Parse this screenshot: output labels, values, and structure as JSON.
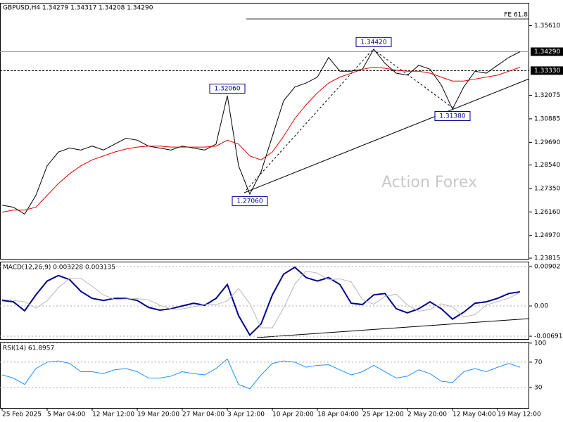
{
  "chart_data": [
    {
      "type": "line",
      "title": "GBPUSD,H4  1.34279 1.34317 1.34208 1.34290",
      "watermark": "Action Forex",
      "ylim": [
        1.2378,
        1.3677
      ],
      "yticks": [
        {
          "value": 1.3561,
          "label": "1.35610"
        },
        {
          "value": 1.32075,
          "label": "1.32075"
        },
        {
          "value": 1.30885,
          "label": "1.30885"
        },
        {
          "value": 1.2969,
          "label": "1.29690"
        },
        {
          "value": 1.2854,
          "label": "1.28540"
        },
        {
          "value": 1.2735,
          "label": "1.27350"
        },
        {
          "value": 1.2616,
          "label": "1.26160"
        },
        {
          "value": 1.2497,
          "label": "1.24970"
        },
        {
          "value": 1.23815,
          "label": "1.23815"
        }
      ],
      "price_lines": [
        {
          "value": 1.3429,
          "label": "1.34290",
          "style": "solid"
        },
        {
          "value": 1.3333,
          "label": "1.33330",
          "style": "dashed"
        }
      ],
      "level_label": "FE 61.8",
      "annotations": [
        {
          "value": 1.3206,
          "label": "1.32060"
        },
        {
          "value": 1.3442,
          "label": "1.34420"
        },
        {
          "value": 1.3138,
          "label": "1.31380"
        },
        {
          "value": 1.2706,
          "label": "1.27060"
        }
      ],
      "series": [
        {
          "name": "Price",
          "color": "#000000",
          "values": [
            1.265,
            1.264,
            1.2605,
            1.27,
            1.285,
            1.292,
            1.294,
            1.293,
            1.295,
            1.293,
            1.296,
            1.299,
            1.298,
            1.295,
            1.294,
            1.293,
            1.295,
            1.294,
            1.293,
            1.296,
            1.3206,
            1.285,
            1.2706,
            1.282,
            1.3,
            1.318,
            1.325,
            1.327,
            1.33,
            1.34,
            1.333,
            1.333,
            1.334,
            1.3442,
            1.337,
            1.332,
            1.331,
            1.336,
            1.334,
            1.326,
            1.3138,
            1.325,
            1.333,
            1.332,
            1.336,
            1.34,
            1.3429
          ]
        },
        {
          "name": "MA",
          "color": "#e00000",
          "values": [
            1.2615,
            1.2625,
            1.2625,
            1.264,
            1.27,
            1.276,
            1.281,
            1.285,
            1.288,
            1.29,
            1.292,
            1.2935,
            1.2945,
            1.295,
            1.295,
            1.2945,
            1.2945,
            1.2945,
            1.2945,
            1.295,
            1.298,
            1.296,
            1.29,
            1.288,
            1.292,
            1.3,
            1.309,
            1.316,
            1.322,
            1.327,
            1.33,
            1.332,
            1.334,
            1.335,
            1.3345,
            1.3335,
            1.333,
            1.333,
            1.332,
            1.33,
            1.328,
            1.328,
            1.329,
            1.33,
            1.331,
            1.333,
            1.335
          ]
        }
      ]
    },
    {
      "type": "line",
      "title": "MACD(12,26,9) 0.003228 0.003135",
      "ylim": [
        -0.00755,
        0.01013
      ],
      "yticks": [
        0.00902,
        {
          "value": 0,
          "label": "0.00"
        },
        -0.006915
      ],
      "series": [
        {
          "name": "MACD",
          "color": "#00008b",
          "values": [
            0.00126,
            0.00095,
            -0.00111,
            0.00253,
            0.0057,
            0.00696,
            0.00601,
            0.00332,
            0.00174,
            0.00126,
            0.00174,
            0.00174,
            0.00126,
            -0.00032,
            -0.00095,
            -0.00063,
            0,
            0.00063,
            0.00016,
            0.00174,
            0.0049,
            -0.00221,
            -0.00664,
            -0.00411,
            0.00253,
            0.00727,
            0.00886,
            0.00649,
            0.0057,
            0.00649,
            0.0049,
            0.00063,
            0.00032,
            0.00253,
            0.00285,
            -0.00063,
            -0.00158,
            -0.00063,
            0.00095,
            -0.00063,
            -0.00301,
            -0.00142,
            0.00063,
            0.00095,
            0.00174,
            0.00285,
            0.00323
          ]
        },
        {
          "name": "Signal",
          "color": "#b8b8b8",
          "values": [
            0.0015,
            0.00126,
            0.00095,
            -0.0005,
            0.0012,
            0.0042,
            0.0063,
            0.0063,
            0.0045,
            0.0025,
            0.0015,
            0.0016,
            0.0017,
            0.0014,
            0.0002,
            -0.0007,
            -0.0007,
            -0.0002,
            0.0004,
            0.0003,
            0.0012,
            0.004,
            0.0005,
            -0.005,
            -0.005,
            -0.0005,
            0.005,
            0.008,
            0.0075,
            0.006,
            0.0062,
            0.0055,
            0.0015,
            0.0004,
            0.0022,
            0.0027,
            0.0002,
            -0.0012,
            -0.0008,
            0.0005,
            -0.0002,
            -0.0025,
            -0.002,
            0.0002,
            0.001,
            0.0018,
            0.0031
          ]
        }
      ]
    },
    {
      "type": "line",
      "title": "RSI(14) 61.8957",
      "ylim": [
        -2,
        102
      ],
      "yticks": [
        100,
        70,
        30
      ],
      "categories": [
        "25 Feb 2025",
        null,
        null,
        null,
        "5 Mar 04:00",
        null,
        null,
        null,
        "12 Mar 12:00",
        null,
        null,
        null,
        "19 Mar 20:00",
        null,
        null,
        null,
        "27 Mar 04:00",
        null,
        null,
        null,
        "3 Apr 12:00",
        null,
        null,
        null,
        "10 Apr 20:00",
        null,
        null,
        null,
        "18 Apr 04:00",
        null,
        null,
        null,
        "25 Apr 12:00",
        null,
        null,
        null,
        "2 May 20:00",
        null,
        null,
        null,
        "12 May 04:00",
        null,
        null,
        null,
        "19 May 12:00",
        null,
        null
      ],
      "series": [
        {
          "name": "RSI",
          "color": "#1e90ff",
          "values": [
            50,
            45,
            35,
            60,
            70,
            72,
            68,
            55,
            55,
            52,
            58,
            60,
            55,
            45,
            45,
            48,
            55,
            52,
            50,
            60,
            75,
            35,
            28,
            50,
            68,
            72,
            70,
            62,
            65,
            66,
            58,
            50,
            55,
            65,
            55,
            45,
            48,
            58,
            52,
            40,
            38,
            55,
            60,
            55,
            62,
            68,
            62
          ]
        }
      ]
    }
  ]
}
